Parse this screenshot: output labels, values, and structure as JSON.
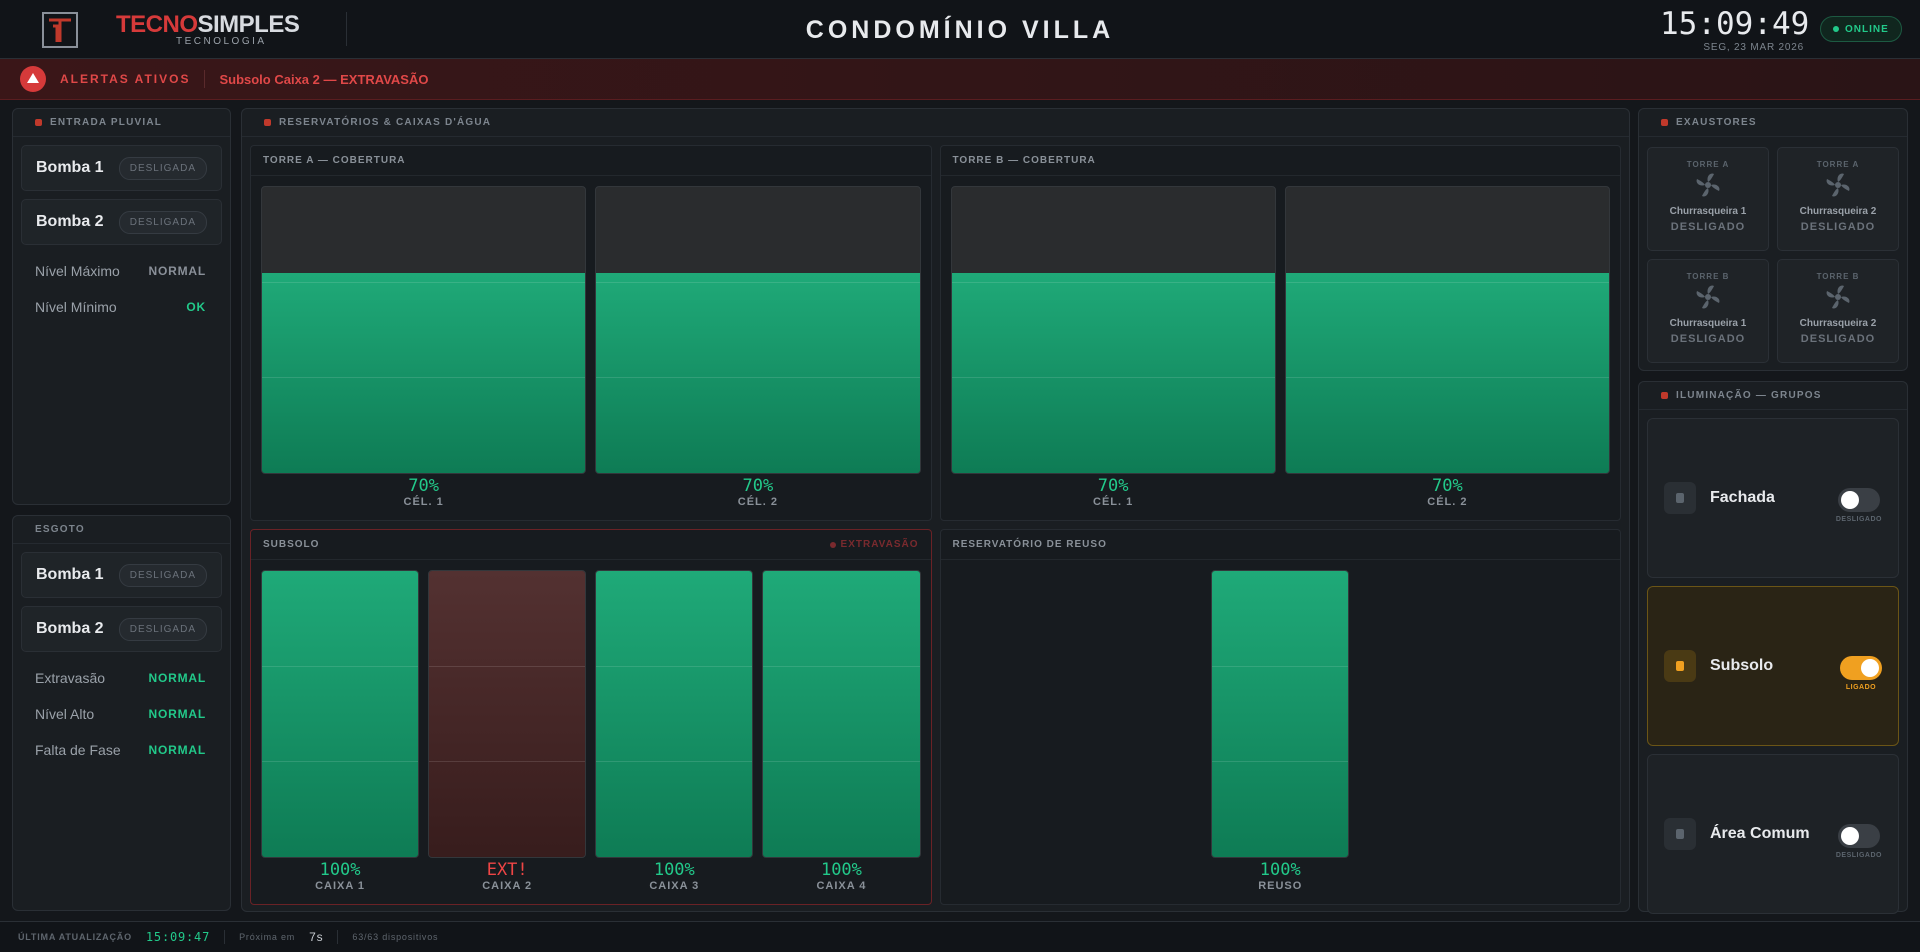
{
  "header": {
    "brand_a": "TECNO",
    "brand_b": "SIMPLES",
    "tagline": "TECNOLOGIA",
    "title": "CONDOMÍNIO VILLA",
    "time": "15:09:49",
    "date": "SEG, 23 MAR 2026",
    "status": "ONLINE"
  },
  "alerts": {
    "label": "ALERTAS ATIVOS",
    "items": [
      "Subsolo Caixa 2 — EXTRAVASÃO"
    ]
  },
  "left_panels": [
    {
      "title": "ENTRADA PLUVIAL",
      "pumps": [
        {
          "name": "Bomba 1",
          "state": "DESLIGADA"
        },
        {
          "name": "Bomba 2",
          "state": "DESLIGADA"
        }
      ],
      "sensors": [
        {
          "name": "Nível Máximo",
          "state": "NORMAL",
          "color": "#8a9099"
        },
        {
          "name": "Nível Mínimo",
          "state": "OK",
          "color": "#22c98a"
        }
      ]
    },
    {
      "title": "ESGOTO",
      "pumps": [
        {
          "name": "Bomba 1",
          "state": "DESLIGADA"
        },
        {
          "name": "Bomba 2",
          "state": "DESLIGADA"
        }
      ],
      "sensors": [
        {
          "name": "Extravasão",
          "state": "NORMAL",
          "color": "#22c98a"
        },
        {
          "name": "Nível Alto",
          "state": "NORMAL",
          "color": "#22c98a"
        },
        {
          "name": "Falta de Fase",
          "state": "NORMAL",
          "color": "#22c98a"
        }
      ]
    }
  ],
  "reservatorios": {
    "title": "RESERVATÓRIOS & CAIXAS D'ÁGUA",
    "groups": [
      {
        "title": "TORRE A — COBERTURA",
        "tanks": [
          {
            "name": "CÉL. 1",
            "color": "#13a571",
            "level": {
              "value": 70,
              "label": "70%"
            }
          },
          {
            "name": "CÉL. 2",
            "color": "#13a571",
            "level": {
              "value": 70,
              "label": "70%"
            }
          }
        ]
      },
      {
        "title": "TORRE B — COBERTURA",
        "tanks": [
          {
            "name": "CÉL. 1",
            "color": "#13a571",
            "level": {
              "value": 70,
              "label": "70%"
            }
          },
          {
            "name": "CÉL. 2",
            "color": "#13a571",
            "level": {
              "value": 70,
              "label": "70%"
            }
          }
        ]
      },
      {
        "title": "SUBSOLO",
        "alert": "EXTRAVASÃO",
        "tanks": [
          {
            "name": "CAIXA 1",
            "color": "#13a571",
            "level": {
              "value": 100,
              "label": "100%"
            }
          },
          {
            "name": "CAIXA 2",
            "color": "#4a2626",
            "level": {
              "label": "EXT!"
            }
          },
          {
            "name": "CAIXA 3",
            "color": "#13a571",
            "level": {
              "value": 100,
              "label": "100%"
            }
          },
          {
            "name": "CAIXA 4",
            "color": "#13a571",
            "level": {
              "value": 100,
              "label": "100%"
            }
          }
        ]
      },
      {
        "title": "RESERVATÓRIO DE REUSO",
        "tanks": [
          {
            "name": "REUSO",
            "color": "#13a571",
            "level": {
              "value": 100,
              "label": "100%"
            }
          }
        ]
      }
    ]
  },
  "exaustores": {
    "title": "EXAUSTORES",
    "items": [
      {
        "tower": "TORRE A",
        "name": "Churrasqueira 1",
        "state": "DESLIGADO"
      },
      {
        "tower": "TORRE A",
        "name": "Churrasqueira 2",
        "state": "DESLIGADO"
      },
      {
        "tower": "TORRE B",
        "name": "Churrasqueira 1",
        "state": "DESLIGADO"
      },
      {
        "tower": "TORRE B",
        "name": "Churrasqueira 2",
        "state": "DESLIGADO"
      }
    ]
  },
  "iluminacao": {
    "title": "ILUMINAÇÃO — GRUPOS",
    "groups": [
      {
        "name": "Fachada",
        "state": "DESLIGADO",
        "on": false
      },
      {
        "name": "Subsolo",
        "state": "LIGADO",
        "on": true
      },
      {
        "name": "Área Comum",
        "state": "DESLIGADO",
        "on": false
      }
    ]
  },
  "footer": {
    "updated_label": "ÚLTIMA ATUALIZAÇÃO",
    "updated": "15:09:47",
    "next_label": "Próxima em",
    "next": "7s",
    "devices": "63/63 dispositivos"
  }
}
